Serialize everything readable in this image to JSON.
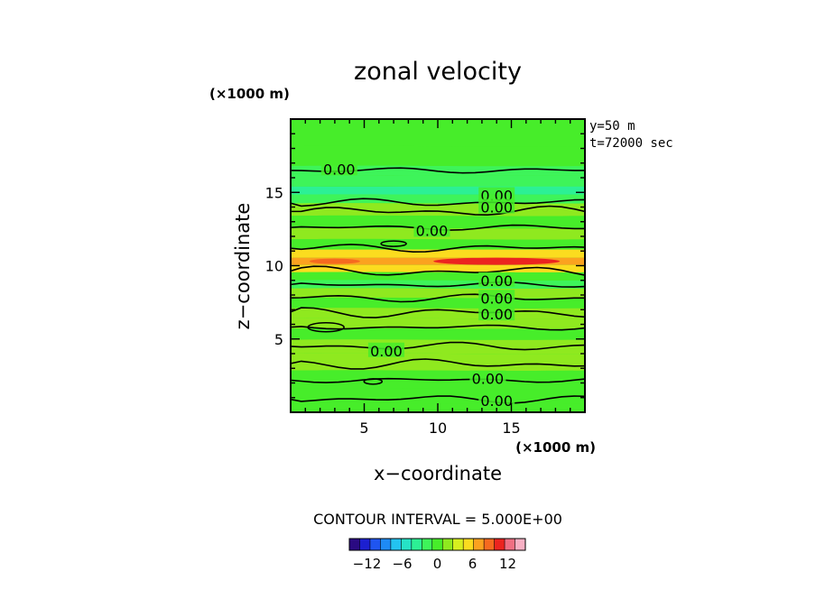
{
  "chart_data": {
    "type": "heatmap",
    "title": "zonal velocity",
    "xlabel": "x−coordinate",
    "ylabel": "z−coordinate",
    "x_unit": "(×1000 m)",
    "y_unit": "(×1000 m)",
    "xlim": [
      0,
      20
    ],
    "ylim": [
      0,
      20
    ],
    "x_ticks": [
      5,
      10,
      15
    ],
    "y_ticks": [
      5,
      10,
      15
    ],
    "annotations": [
      "y=50  m",
      "t=72000 sec"
    ],
    "contour_interval_text": "CONTOUR INTERVAL = 5.000E+00",
    "contour_label": "0.00",
    "colorbar": {
      "ticks": [
        "−12",
        "−6",
        "0",
        "6",
        "12"
      ],
      "min": -15,
      "max": 15,
      "colors": [
        "#2a0a82",
        "#1c1fd0",
        "#1f55f0",
        "#1e8bf5",
        "#23c3f0",
        "#26e3c6",
        "#2cf095",
        "#3ef45a",
        "#47ed2a",
        "#8fe91f",
        "#d7ef1f",
        "#fbdc1f",
        "#fba21f",
        "#f66a1f",
        "#ec241f",
        "#f06f83",
        "#f8b0c4"
      ]
    },
    "z_bands": [
      {
        "z": 19.3,
        "u": 0.5
      },
      {
        "z": 17.0,
        "u": -0.3
      },
      {
        "z": 16.6,
        "u": -2.0
      },
      {
        "z": 15.7,
        "u": -1.5
      },
      {
        "z": 15.1,
        "u": -3.5
      },
      {
        "z": 14.6,
        "u": -1.5
      },
      {
        "z": 13.9,
        "u": 1.2
      },
      {
        "z": 12.9,
        "u": 0.3
      },
      {
        "z": 12.2,
        "u": 1.8
      },
      {
        "z": 11.4,
        "u": 0.8
      },
      {
        "z": 10.8,
        "u": 5.5
      },
      {
        "z": 10.3,
        "u": 7.0
      },
      {
        "z": 9.8,
        "u": 4.5
      },
      {
        "z": 9.3,
        "u": 0.5
      },
      {
        "z": 8.7,
        "u": -1.0
      },
      {
        "z": 8.2,
        "u": 1.0
      },
      {
        "z": 7.4,
        "u": 0.0
      },
      {
        "z": 6.8,
        "u": 1.2
      },
      {
        "z": 6.0,
        "u": 1.8
      },
      {
        "z": 5.4,
        "u": 0.0
      },
      {
        "z": 4.5,
        "u": 1.2
      },
      {
        "z": 3.5,
        "u": 1.8
      },
      {
        "z": 2.2,
        "u": 0.2
      },
      {
        "z": 1.0,
        "u": 0.8
      },
      {
        "z": 0.2,
        "u": 0.2
      }
    ],
    "contour_lines_z": [
      16.5,
      14.3,
      13.7,
      12.6,
      11.2,
      9.6,
      8.7,
      7.8,
      6.8,
      5.8,
      4.5,
      3.3,
      2.2,
      0.9
    ],
    "contour_label_positions": [
      {
        "x": 3.3,
        "z": 16.6
      },
      {
        "x": 14.0,
        "z": 14.8
      },
      {
        "x": 14.0,
        "z": 14.0
      },
      {
        "x": 9.6,
        "z": 12.4
      },
      {
        "x": 14.0,
        "z": 9.0
      },
      {
        "x": 14.0,
        "z": 7.8
      },
      {
        "x": 14.0,
        "z": 6.7
      },
      {
        "x": 6.5,
        "z": 4.2
      },
      {
        "x": 13.4,
        "z": 2.3
      },
      {
        "x": 14.0,
        "z": 0.8
      }
    ]
  }
}
